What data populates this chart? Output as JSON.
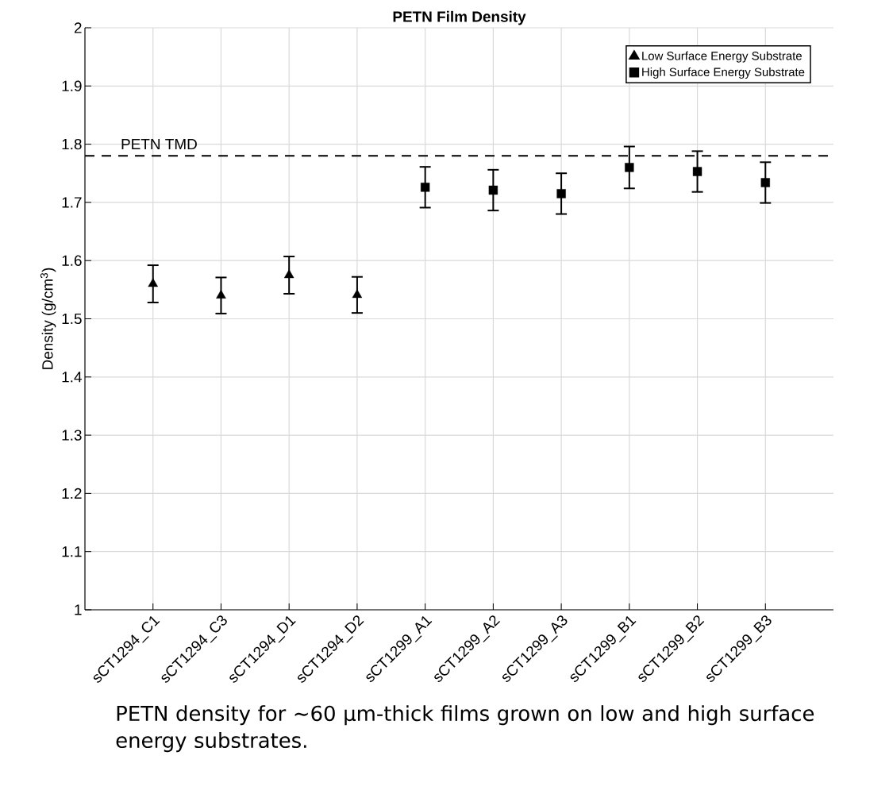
{
  "chart_data": {
    "type": "scatter",
    "title": "**PETN Film Density**",
    "ylabel": "Density (g/cm$^{3}$)",
    "categories": [
      "sCT1294_C1",
      "sCT1294_C3",
      "sCT1294_D1",
      "sCT1294_D2",
      "sCT1299_A1",
      "sCT1299_A2",
      "sCT1299_A3",
      "sCT1299_B1",
      "sCT1299_B2",
      "sCT1299_B3"
    ],
    "series": [
      {
        "name": "Low Surface Energy Substrate",
        "color": "#000000",
        "marker": "triangle",
        "values": [
          1.56,
          1.54,
          1.575,
          1.541,
          null,
          null,
          null,
          null,
          null,
          null
        ],
        "errors": [
          0.032,
          0.031,
          0.032,
          0.031,
          null,
          null,
          null,
          null,
          null,
          null
        ]
      },
      {
        "name": "High Surface Energy Substrate",
        "color": "#000000",
        "marker": "square",
        "values": [
          null,
          null,
          null,
          null,
          1.726,
          1.721,
          1.715,
          1.76,
          1.753,
          1.734
        ],
        "errors": [
          null,
          null,
          null,
          null,
          0.035,
          0.035,
          0.035,
          0.036,
          0.035,
          0.035
        ]
      }
    ],
    "ylim": [
      1,
      2
    ],
    "yticks": [
      1,
      1.1,
      1.2,
      1.3,
      1.4,
      1.5,
      1.6,
      1.7,
      1.8,
      1.9,
      2
    ],
    "grid": true,
    "legend": "top right",
    "ref_lines": [
      {
        "axis": "y",
        "value": 1.78,
        "label": "PETN TMD",
        "line_style": "dashed",
        "color": "#000000"
      }
    ],
    "annotations": [
      "PETN density for ~60 µm-thick films grown on low and high surface energy substrates."
    ]
  }
}
